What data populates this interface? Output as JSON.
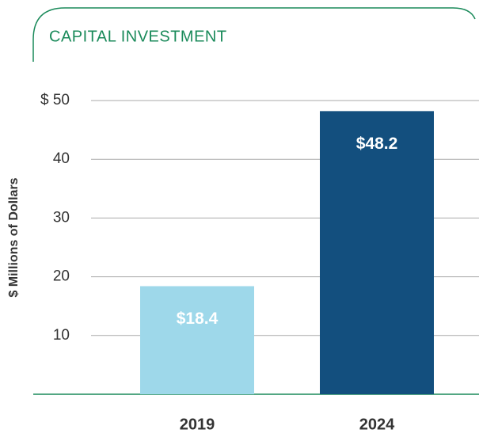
{
  "chart_data": {
    "type": "bar",
    "title": "CAPITAL INVESTMENT",
    "y_label": "$ Millions of Dollars",
    "categories": [
      "2019",
      "2024"
    ],
    "values": [
      18.4,
      48.2
    ],
    "value_labels": [
      "$18.4",
      "$48.2"
    ],
    "colors": [
      "#9ed8ea",
      "#134f7e"
    ],
    "ylim": [
      0,
      50
    ],
    "yticks": [
      10,
      20,
      30,
      40,
      {
        "value": 50,
        "label": "$ 50"
      }
    ],
    "grid": true
  }
}
